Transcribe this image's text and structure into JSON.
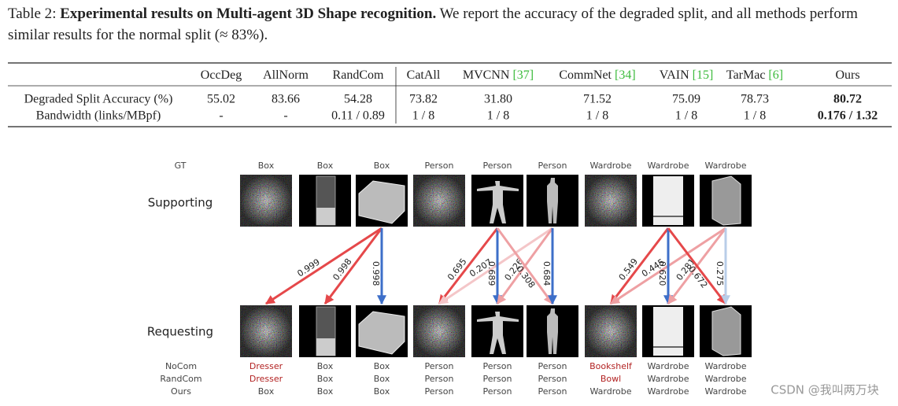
{
  "caption": {
    "label": "Table 2",
    "title": "Experimental results on Multi-agent 3D Shape recognition.",
    "text": "We report the accuracy of the degraded split, and all methods perform similar results for the normal split (≈ 83%)."
  },
  "table": {
    "columns": [
      {
        "name": "OccDeg"
      },
      {
        "name": "AllNorm"
      },
      {
        "name": "RandCom"
      },
      {
        "name": "CatAll"
      },
      {
        "name": "MVCNN",
        "cite": "[37]"
      },
      {
        "name": "CommNet",
        "cite": "[34]"
      },
      {
        "name": "VAIN",
        "cite": "[15]"
      },
      {
        "name": "TarMac",
        "cite": "[6]"
      },
      {
        "name": "Ours"
      }
    ],
    "rows": [
      {
        "label": "Degraded Split Accuracy (%)",
        "cells": [
          "55.02",
          "83.66",
          "54.28",
          "73.82",
          "31.80",
          "71.52",
          "75.09",
          "78.73",
          "80.72"
        ]
      },
      {
        "label": "Bandwidth (links/MBpf)",
        "cells": [
          "-",
          "-",
          "0.11 / 0.89",
          "1 / 8",
          "1 / 8",
          "1 / 8",
          "1 / 8",
          "1 / 8",
          "0.176 / 1.32"
        ]
      }
    ]
  },
  "figure": {
    "gt_label": "GT",
    "gt": [
      "Box",
      "Box",
      "Box",
      "Person",
      "Person",
      "Person",
      "Wardrobe",
      "Wardrobe",
      "Wardrobe"
    ],
    "supporting": "Supporting",
    "requesting": "Requesting",
    "edges": [
      {
        "from": 2,
        "to": 0,
        "weight": "0.999",
        "color": "#e5484a"
      },
      {
        "from": 2,
        "to": 1,
        "weight": "0.998",
        "color": "#e5484a"
      },
      {
        "from": 2,
        "to": 2,
        "weight": "0.998",
        "color": "#3d6fc9"
      },
      {
        "from": 4,
        "to": 3,
        "weight": "0.695",
        "color": "#e5484a"
      },
      {
        "from": 5,
        "to": 3,
        "weight": "0.207",
        "color": "#f4c6c8"
      },
      {
        "from": 4,
        "to": 4,
        "weight": "0.689",
        "color": "#3d6fc9"
      },
      {
        "from": 5,
        "to": 4,
        "weight": "0.226",
        "color": "#eea0a3"
      },
      {
        "from": 4,
        "to": 5,
        "weight": "0.308",
        "color": "#eea0a3"
      },
      {
        "from": 5,
        "to": 5,
        "weight": "0.684",
        "color": "#3d6fc9"
      },
      {
        "from": 7,
        "to": 6,
        "weight": "0.549",
        "color": "#e5484a"
      },
      {
        "from": 8,
        "to": 6,
        "weight": "0.445",
        "color": "#eea0a3"
      },
      {
        "from": 7,
        "to": 7,
        "weight": "0.620",
        "color": "#3d6fc9"
      },
      {
        "from": 8,
        "to": 7,
        "weight": "0.281",
        "color": "#eea0a3"
      },
      {
        "from": 7,
        "to": 8,
        "weight": "0.672",
        "color": "#e5484a"
      },
      {
        "from": 8,
        "to": 8,
        "weight": "0.275",
        "color": "#b8cde8"
      }
    ],
    "predictions": [
      {
        "method": "NoCom",
        "labels": [
          {
            "text": "Dresser",
            "color": "#b22222"
          },
          {
            "text": "Box",
            "color": "#444"
          },
          {
            "text": "Box",
            "color": "#444"
          },
          {
            "text": "Person",
            "color": "#444"
          },
          {
            "text": "Person",
            "color": "#444"
          },
          {
            "text": "Person",
            "color": "#444"
          },
          {
            "text": "Bookshelf",
            "color": "#b22222"
          },
          {
            "text": "Wardrobe",
            "color": "#444"
          },
          {
            "text": "Wardrobe",
            "color": "#444"
          }
        ]
      },
      {
        "method": "RandCom",
        "labels": [
          {
            "text": "Dresser",
            "color": "#b22222"
          },
          {
            "text": "Box",
            "color": "#444"
          },
          {
            "text": "Box",
            "color": "#444"
          },
          {
            "text": "Person",
            "color": "#444"
          },
          {
            "text": "Person",
            "color": "#444"
          },
          {
            "text": "Person",
            "color": "#444"
          },
          {
            "text": "Bowl",
            "color": "#b22222"
          },
          {
            "text": "Wardrobe",
            "color": "#444"
          },
          {
            "text": "Wardrobe",
            "color": "#444"
          }
        ]
      },
      {
        "method": "Ours",
        "labels": [
          {
            "text": "Box",
            "color": "#444"
          },
          {
            "text": "Box",
            "color": "#444"
          },
          {
            "text": "Box",
            "color": "#444"
          },
          {
            "text": "Person",
            "color": "#444"
          },
          {
            "text": "Person",
            "color": "#444"
          },
          {
            "text": "Person",
            "color": "#444"
          },
          {
            "text": "Wardrobe",
            "color": "#444"
          },
          {
            "text": "Wardrobe",
            "color": "#444"
          },
          {
            "text": "Wardrobe",
            "color": "#444"
          }
        ]
      }
    ]
  },
  "watermark": "CSDN @我叫两万块"
}
